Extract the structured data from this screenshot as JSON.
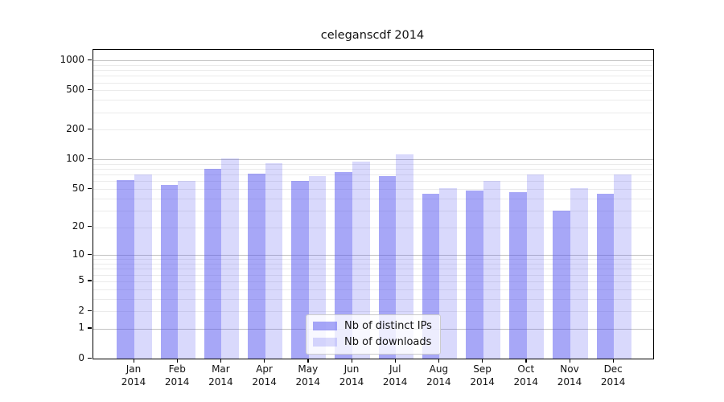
{
  "title": "celeganscdf 2014",
  "legend": {
    "items": [
      {
        "label": "Nb of distinct IPs"
      },
      {
        "label": "Nb of downloads"
      }
    ]
  },
  "axis": {
    "y_tick_labels": [
      "1000",
      "500",
      "200",
      "100",
      "50",
      "20",
      "10",
      "5",
      "2",
      "1",
      "0"
    ],
    "x_tick_line2": "2014"
  },
  "chart_data": {
    "type": "bar",
    "title": "celeganscdf 2014",
    "categories": [
      "Jan 2014",
      "Feb 2014",
      "Mar 2014",
      "Apr 2014",
      "May 2014",
      "Jun 2014",
      "Jul 2014",
      "Aug 2014",
      "Sep 2014",
      "Oct 2014",
      "Nov 2014",
      "Dec 2014"
    ],
    "categories_line1": [
      "Jan",
      "Feb",
      "Mar",
      "Apr",
      "May",
      "Jun",
      "Jul",
      "Aug",
      "Sep",
      "Oct",
      "Nov",
      "Dec"
    ],
    "series": [
      {
        "name": "Nb of distinct IPs",
        "base_color": "#5050f0",
        "alpha": 0.5,
        "rendered_color": "#a8a8f5",
        "values": [
          62,
          55,
          80,
          72,
          60,
          75,
          68,
          45,
          48,
          46,
          30,
          45
        ]
      },
      {
        "name": "Nb of downloads",
        "base_color": "#5050f0",
        "alpha": 0.22,
        "rendered_color": "#dadaf8",
        "values": [
          71,
          60,
          103,
          91,
          68,
          95,
          112,
          51,
          60,
          70,
          51,
          70
        ]
      }
    ],
    "yscale": "log1p",
    "yticks": [
      0,
      1,
      2,
      5,
      10,
      20,
      50,
      100,
      200,
      500,
      1000
    ],
    "ytick_major_gridlines": [
      1,
      10,
      100,
      1000
    ],
    "ytick_minor_gridlines": [
      2,
      3,
      4,
      5,
      6,
      7,
      8,
      9,
      20,
      30,
      40,
      50,
      60,
      70,
      80,
      90,
      200,
      300,
      400,
      500,
      600,
      700,
      800,
      900
    ],
    "ylim": [
      0,
      1280
    ],
    "grid": "major+minor",
    "grid_major_color": "#c2c2c2",
    "grid_minor_color": "#ebebeb",
    "legend_position": "lower center",
    "xlabel": "",
    "ylabel": ""
  }
}
